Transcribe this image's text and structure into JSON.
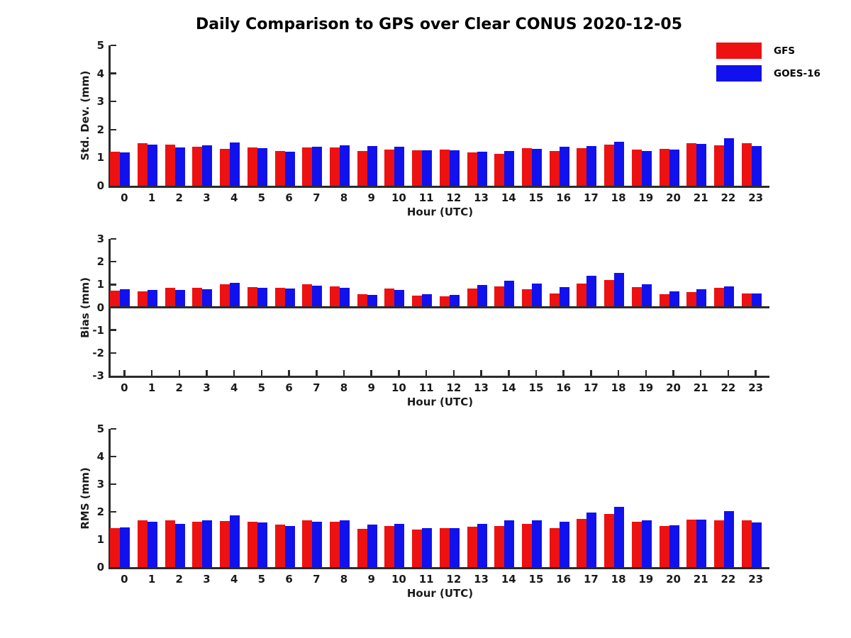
{
  "title": "Daily Comparison to GPS over Clear CONUS 2020-12-05",
  "legend": {
    "position": "upper right outside plot",
    "items": [
      {
        "label": "GFS",
        "color": "#EE1111"
      },
      {
        "label": "GOES-16",
        "color": "#1111EE"
      }
    ]
  },
  "chart_data": [
    {
      "type": "bar",
      "panel": "std-dev",
      "ylabel": "Std. Dev. (mm)",
      "xlabel": "Hour (UTC)",
      "ylim": [
        0,
        5
      ],
      "yticks": [
        0,
        1,
        2,
        3,
        4,
        5
      ],
      "grid": false,
      "categories": [
        0,
        1,
        2,
        3,
        4,
        5,
        6,
        7,
        8,
        9,
        10,
        11,
        12,
        13,
        14,
        15,
        16,
        17,
        18,
        19,
        20,
        21,
        22,
        23
      ],
      "series": [
        {
          "name": "GFS",
          "color": "#EE1111",
          "values": [
            1.21,
            1.51,
            1.46,
            1.4,
            1.31,
            1.36,
            1.25,
            1.36,
            1.36,
            1.23,
            1.29,
            1.27,
            1.28,
            1.19,
            1.14,
            1.33,
            1.25,
            1.35,
            1.46,
            1.28,
            1.31,
            1.51,
            1.43,
            1.51
          ]
        },
        {
          "name": "GOES-16",
          "color": "#1111EE",
          "values": [
            1.18,
            1.47,
            1.37,
            1.43,
            1.53,
            1.35,
            1.22,
            1.39,
            1.44,
            1.42,
            1.38,
            1.26,
            1.26,
            1.21,
            1.23,
            1.32,
            1.38,
            1.42,
            1.56,
            1.25,
            1.28,
            1.48,
            1.7,
            1.41
          ]
        }
      ]
    },
    {
      "type": "bar",
      "panel": "bias",
      "ylabel": "Bias (mm)",
      "xlabel": "Hour (UTC)",
      "ylim": [
        -3,
        3
      ],
      "yticks": [
        -3,
        -2,
        -1,
        0,
        1,
        2,
        3
      ],
      "grid": false,
      "categories": [
        0,
        1,
        2,
        3,
        4,
        5,
        6,
        7,
        8,
        9,
        10,
        11,
        12,
        13,
        14,
        15,
        16,
        17,
        18,
        19,
        20,
        21,
        22,
        23
      ],
      "series": [
        {
          "name": "GFS",
          "color": "#EE1111",
          "values": [
            0.74,
            0.71,
            0.84,
            0.86,
            1.02,
            0.9,
            0.86,
            1.0,
            0.93,
            0.58,
            0.82,
            0.51,
            0.47,
            0.82,
            0.93,
            0.8,
            0.61,
            1.05,
            1.21,
            0.89,
            0.56,
            0.68,
            0.84,
            0.62
          ]
        },
        {
          "name": "GOES-16",
          "color": "#1111EE",
          "values": [
            0.78,
            0.75,
            0.76,
            0.78,
            1.07,
            0.86,
            0.82,
            0.94,
            0.86,
            0.55,
            0.76,
            0.57,
            0.55,
            0.97,
            1.16,
            1.05,
            0.89,
            1.37,
            1.51,
            1.01,
            0.69,
            0.78,
            0.91,
            0.62
          ]
        }
      ]
    },
    {
      "type": "bar",
      "panel": "rms",
      "ylabel": "RMS (mm)",
      "xlabel": "Hour (UTC)",
      "ylim": [
        0,
        5
      ],
      "yticks": [
        0,
        1,
        2,
        3,
        4,
        5
      ],
      "grid": false,
      "categories": [
        0,
        1,
        2,
        3,
        4,
        5,
        6,
        7,
        8,
        9,
        10,
        11,
        12,
        13,
        14,
        15,
        16,
        17,
        18,
        19,
        20,
        21,
        22,
        23
      ],
      "series": [
        {
          "name": "GFS",
          "color": "#EE1111",
          "values": [
            1.42,
            1.68,
            1.68,
            1.65,
            1.67,
            1.63,
            1.53,
            1.68,
            1.65,
            1.39,
            1.48,
            1.37,
            1.4,
            1.46,
            1.49,
            1.57,
            1.42,
            1.74,
            1.92,
            1.63,
            1.5,
            1.72,
            1.7,
            1.7
          ]
        },
        {
          "name": "GOES-16",
          "color": "#1111EE",
          "values": [
            1.43,
            1.64,
            1.57,
            1.68,
            1.88,
            1.62,
            1.5,
            1.65,
            1.69,
            1.53,
            1.57,
            1.42,
            1.4,
            1.57,
            1.69,
            1.7,
            1.65,
            1.98,
            2.18,
            1.68,
            1.52,
            1.73,
            2.02,
            1.61
          ]
        }
      ]
    }
  ]
}
